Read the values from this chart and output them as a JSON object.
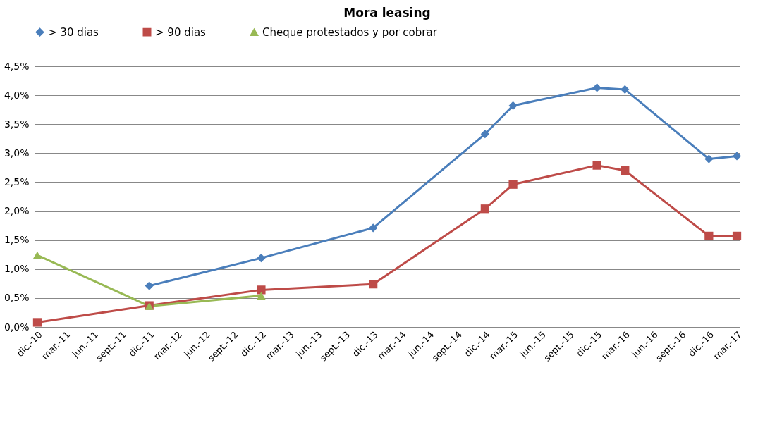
{
  "chart_data": {
    "type": "line",
    "title": "Mora leasing",
    "categories": [
      "dic.-10",
      "mar.-11",
      "jun.-11",
      "sept.-11",
      "dic.-11",
      "mar.-12",
      "jun.-12",
      "sept.-12",
      "dic.-12",
      "mar.-13",
      "jun.-13",
      "sept.-13",
      "dic.-13",
      "mar.-14",
      "jun.-14",
      "sept.-14",
      "dic.-14",
      "mar.-15",
      "jun.-15",
      "sept.-15",
      "dic.-15",
      "mar.-16",
      "jun.-16",
      "sept.-16",
      "dic.-16",
      "mar.-17"
    ],
    "series": [
      {
        "name": "> 30 dias",
        "color": "#4a7ebb",
        "marker": "diamond",
        "values": [
          null,
          null,
          null,
          null,
          0.71,
          null,
          null,
          null,
          1.19,
          null,
          null,
          null,
          1.71,
          null,
          null,
          null,
          3.33,
          3.82,
          null,
          null,
          4.13,
          4.1,
          null,
          null,
          2.9,
          2.95
        ]
      },
      {
        "name": "> 90 dias",
        "color": "#be4b48",
        "marker": "square",
        "values": [
          0.08,
          null,
          null,
          null,
          0.37,
          null,
          null,
          null,
          0.64,
          null,
          null,
          null,
          0.74,
          null,
          null,
          null,
          2.04,
          2.46,
          null,
          null,
          2.79,
          2.7,
          null,
          null,
          1.57,
          1.57
        ]
      },
      {
        "name": "Cheque protestados y por cobrar",
        "color": "#98b954",
        "marker": "triangle",
        "values": [
          1.24,
          null,
          null,
          null,
          0.36,
          null,
          null,
          null,
          0.54,
          null,
          null,
          null,
          null,
          null,
          null,
          null,
          null,
          null,
          null,
          null,
          null,
          null,
          null,
          null,
          null,
          null
        ]
      }
    ],
    "ylim": [
      0,
      4.5
    ],
    "yticks": [
      {
        "value": 0,
        "label": "0,0%"
      },
      {
        "value": 0.5,
        "label": "0,5%"
      },
      {
        "value": 1,
        "label": "1,0%"
      },
      {
        "value": 1.5,
        "label": "1,5%"
      },
      {
        "value": 2,
        "label": "2,0%"
      },
      {
        "value": 2.5,
        "label": "2,5%"
      },
      {
        "value": 3,
        "label": "3,0%"
      },
      {
        "value": 3.5,
        "label": "3,5%"
      },
      {
        "value": 4,
        "label": "4,0%"
      },
      {
        "value": 4.5,
        "label": "4,5%"
      }
    ],
    "grid": "y",
    "legend": "top",
    "line_style": "solid"
  }
}
